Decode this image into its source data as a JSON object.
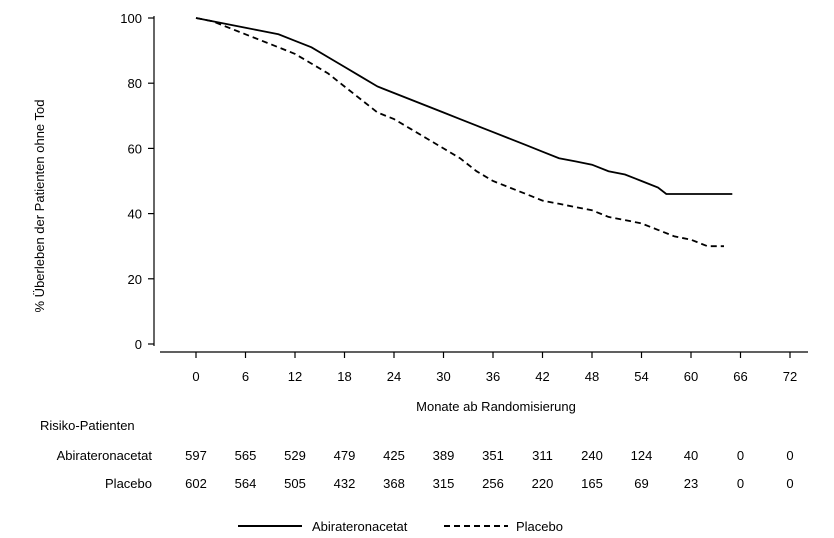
{
  "chart_data": {
    "type": "line",
    "title": "",
    "xlabel": "Monate ab Randomisierung",
    "ylabel": "% Überleben der Patienten ohne Tod",
    "xlim": [
      0,
      72
    ],
    "ylim": [
      0,
      100
    ],
    "x_ticks": [
      "0",
      "6",
      "12",
      "18",
      "24",
      "30",
      "36",
      "42",
      "48",
      "54",
      "60",
      "66",
      "72"
    ],
    "y_ticks": [
      "0",
      "20",
      "40",
      "60",
      "80",
      "100"
    ],
    "grid": false,
    "legend_position": "bottom-center",
    "series": [
      {
        "name": "Abirateronacetat",
        "line_style": "solid",
        "color": "#000000",
        "x": [
          0,
          2,
          4,
          6,
          8,
          10,
          12,
          14,
          16,
          18,
          20,
          22,
          24,
          26,
          28,
          30,
          32,
          34,
          36,
          38,
          40,
          42,
          44,
          46,
          48,
          50,
          52,
          54,
          56,
          57,
          60,
          63,
          65
        ],
        "y": [
          100,
          99,
          98,
          97,
          96,
          95,
          93,
          91,
          88,
          85,
          82,
          79,
          77,
          75,
          73,
          71,
          69,
          67,
          65,
          63,
          61,
          59,
          57,
          56,
          55,
          53,
          52,
          50,
          48,
          46,
          46,
          46,
          46
        ]
      },
      {
        "name": "Placebo",
        "line_style": "dashed",
        "color": "#000000",
        "x": [
          0,
          2,
          4,
          6,
          8,
          10,
          12,
          14,
          16,
          18,
          20,
          22,
          24,
          26,
          28,
          30,
          32,
          34,
          36,
          38,
          40,
          42,
          44,
          46,
          48,
          50,
          52,
          54,
          56,
          58,
          60,
          62,
          64
        ],
        "y": [
          100,
          99,
          97,
          95,
          93,
          91,
          89,
          86,
          83,
          79,
          75,
          71,
          69,
          66,
          63,
          60,
          57,
          53,
          50,
          48,
          46,
          44,
          43,
          42,
          41,
          39,
          38,
          37,
          35,
          33,
          32,
          30,
          30
        ]
      }
    ],
    "risk_table": {
      "title": "Risiko-Patienten",
      "rows": [
        {
          "label": "Abirateronacetat",
          "values": [
            "597",
            "565",
            "529",
            "479",
            "425",
            "389",
            "351",
            "311",
            "240",
            "124",
            "40",
            "0",
            "0"
          ]
        },
        {
          "label": "Placebo",
          "values": [
            "602",
            "564",
            "505",
            "432",
            "368",
            "315",
            "256",
            "220",
            "165",
            "69",
            "23",
            "0",
            "0"
          ]
        }
      ]
    }
  }
}
